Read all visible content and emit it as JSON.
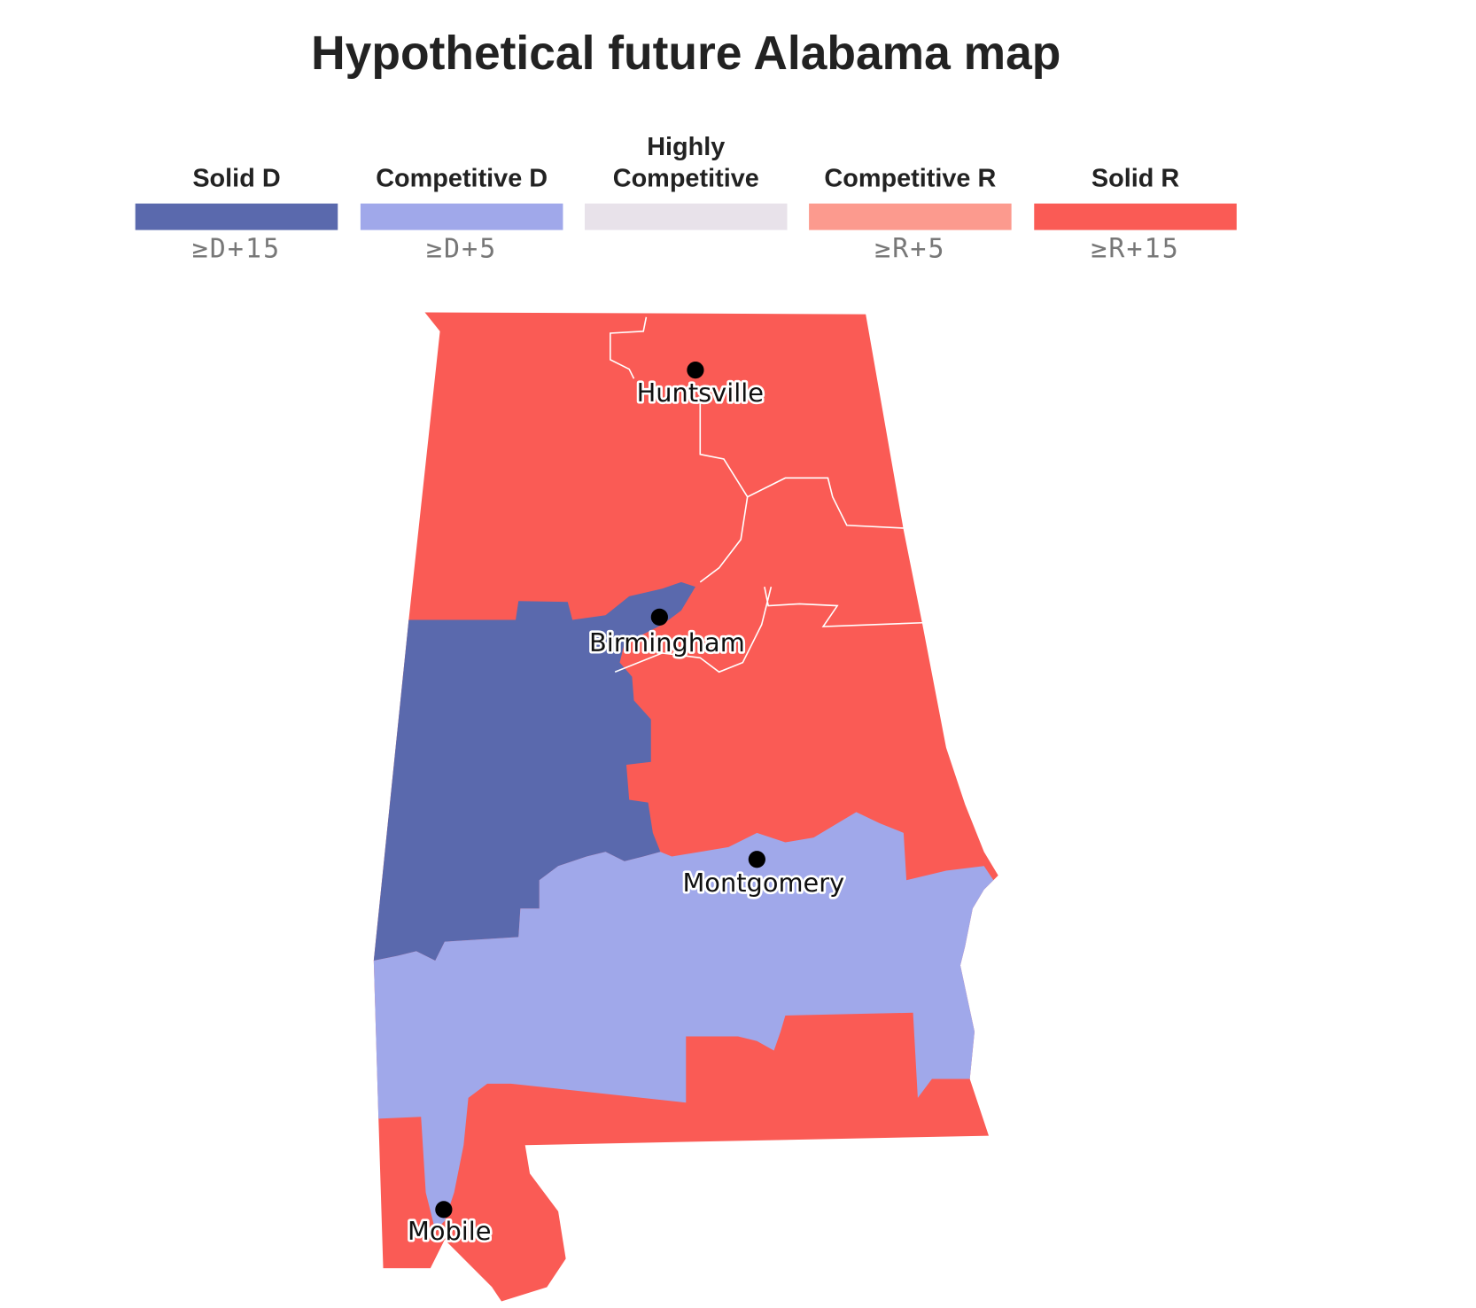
{
  "title": "Hypothetical future Alabama map",
  "legend": {
    "items": [
      {
        "label": "Solid D",
        "color": "#5a69ad",
        "threshold": "≥D+15"
      },
      {
        "label": "Competitive D",
        "color": "#a0a8ea",
        "threshold": "≥D+5"
      },
      {
        "label": "Highly Competitive",
        "color": "#e8e2ea"
      },
      {
        "label": "Competitive R",
        "color": "#fc9a8e",
        "threshold": "≥R+5"
      },
      {
        "label": "Solid R",
        "color": "#fa5b55",
        "threshold": "≥R+15"
      }
    ]
  },
  "cities": [
    {
      "name": "Huntsville"
    },
    {
      "name": "Birmingham"
    },
    {
      "name": "Montgomery"
    },
    {
      "name": "Mobile"
    }
  ]
}
